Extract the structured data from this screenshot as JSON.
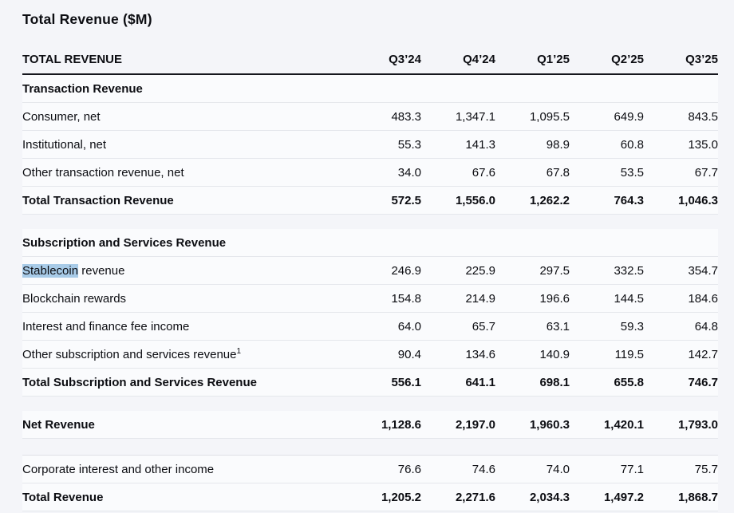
{
  "title": "Total Revenue ($M)",
  "colors": {
    "search_highlight": "#a8cbe8",
    "header_rule": "#15161d",
    "row_separator": "#e5e7ec"
  },
  "table": {
    "header": {
      "label": "TOTAL REVENUE",
      "columns": [
        "Q3’24",
        "Q4’24",
        "Q1’25",
        "Q2’25",
        "Q3’25"
      ]
    },
    "rows": [
      {
        "type": "section",
        "label": "Transaction Revenue"
      },
      {
        "type": "item",
        "label": "Consumer, net",
        "values": [
          "483.3",
          "1,347.1",
          "1,095.5",
          "649.9",
          "843.5"
        ]
      },
      {
        "type": "item",
        "label": "Institutional, net",
        "values": [
          "55.3",
          "141.3",
          "98.9",
          "60.8",
          "135.0"
        ]
      },
      {
        "type": "item",
        "label": "Other transaction revenue, net",
        "values": [
          "34.0",
          "67.6",
          "67.8",
          "53.5",
          "67.7"
        ]
      },
      {
        "type": "total",
        "label": "Total Transaction Revenue",
        "values": [
          "572.5",
          "1,556.0",
          "1,262.2",
          "764.3",
          "1,046.3"
        ]
      },
      {
        "type": "spacer"
      },
      {
        "type": "section",
        "label": "Subscription and Services Revenue"
      },
      {
        "type": "item",
        "label": "Stablecoin revenue",
        "highlight": "Stablecoin",
        "values": [
          "246.9",
          "225.9",
          "297.5",
          "332.5",
          "354.7"
        ]
      },
      {
        "type": "item",
        "label": "Blockchain rewards",
        "values": [
          "154.8",
          "214.9",
          "196.6",
          "144.5",
          "184.6"
        ]
      },
      {
        "type": "item",
        "label": "Interest and finance fee income",
        "values": [
          "64.0",
          "65.7",
          "63.1",
          "59.3",
          "64.8"
        ]
      },
      {
        "type": "item",
        "label": "Other subscription and services revenue",
        "footnote": "1",
        "values": [
          "90.4",
          "134.6",
          "140.9",
          "119.5",
          "142.7"
        ]
      },
      {
        "type": "total",
        "label": "Total Subscription and Services Revenue",
        "values": [
          "556.1",
          "641.1",
          "698.1",
          "655.8",
          "746.7"
        ]
      },
      {
        "type": "spacer"
      },
      {
        "type": "total",
        "label": "Net Revenue",
        "values": [
          "1,128.6",
          "2,197.0",
          "1,960.3",
          "1,420.1",
          "1,793.0"
        ]
      },
      {
        "type": "spacer",
        "size": "large"
      },
      {
        "type": "item",
        "label": "Corporate interest and other income",
        "after_gap": true,
        "values": [
          "76.6",
          "74.6",
          "74.0",
          "77.1",
          "75.7"
        ]
      },
      {
        "type": "total",
        "label": "Total Revenue",
        "values": [
          "1,205.2",
          "2,271.6",
          "2,034.3",
          "1,497.2",
          "1,868.7"
        ]
      }
    ]
  }
}
